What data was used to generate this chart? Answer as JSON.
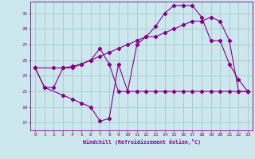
{
  "xlabel": "Windchill (Refroidissement éolien,°C)",
  "bg_color": "#cce8ee",
  "line_color": "#880088",
  "grid_color": "#aacccc",
  "xlim": [
    -0.5,
    23.5
  ],
  "ylim": [
    16,
    32.5
  ],
  "xticks": [
    0,
    1,
    2,
    3,
    4,
    5,
    6,
    7,
    8,
    9,
    10,
    11,
    12,
    13,
    14,
    15,
    16,
    17,
    18,
    19,
    20,
    21,
    22,
    23
  ],
  "yticks": [
    17,
    19,
    21,
    23,
    25,
    27,
    29,
    31
  ],
  "line1_x": [
    0,
    1,
    2,
    3,
    4,
    5,
    6,
    7,
    8,
    9,
    10,
    11,
    12,
    13,
    14,
    15,
    16,
    17,
    18,
    19,
    20,
    21,
    22,
    23
  ],
  "line1_y": [
    24.0,
    21.5,
    21.5,
    24.0,
    24.0,
    24.5,
    25.0,
    26.5,
    24.5,
    21.0,
    21.0,
    21.0,
    21.0,
    21.0,
    21.0,
    21.0,
    21.0,
    21.0,
    21.0,
    21.0,
    21.0,
    21.0,
    21.0,
    21.0
  ],
  "line2_x": [
    0,
    1,
    3,
    4,
    5,
    6,
    7,
    8,
    9,
    10,
    11,
    12,
    13,
    14,
    15,
    16,
    17,
    18,
    19,
    20,
    21,
    22,
    23
  ],
  "line2_y": [
    24.0,
    21.5,
    20.5,
    20.0,
    19.5,
    19.0,
    17.2,
    17.5,
    24.5,
    21.0,
    27.0,
    28.0,
    29.3,
    31.0,
    32.0,
    32.0,
    32.0,
    30.5,
    27.5,
    27.5,
    24.5,
    22.5,
    21.0
  ],
  "line3_x": [
    0,
    2,
    3,
    4,
    5,
    6,
    7,
    8,
    9,
    10,
    11,
    12,
    13,
    14,
    15,
    16,
    17,
    18,
    19,
    20,
    21,
    22,
    23
  ],
  "line3_y": [
    24.0,
    24.0,
    24.0,
    24.2,
    24.5,
    25.0,
    25.5,
    26.0,
    26.5,
    27.0,
    27.5,
    28.0,
    28.0,
    28.5,
    29.0,
    29.5,
    30.0,
    30.0,
    30.5,
    30.0,
    27.5,
    21.0,
    21.0
  ]
}
